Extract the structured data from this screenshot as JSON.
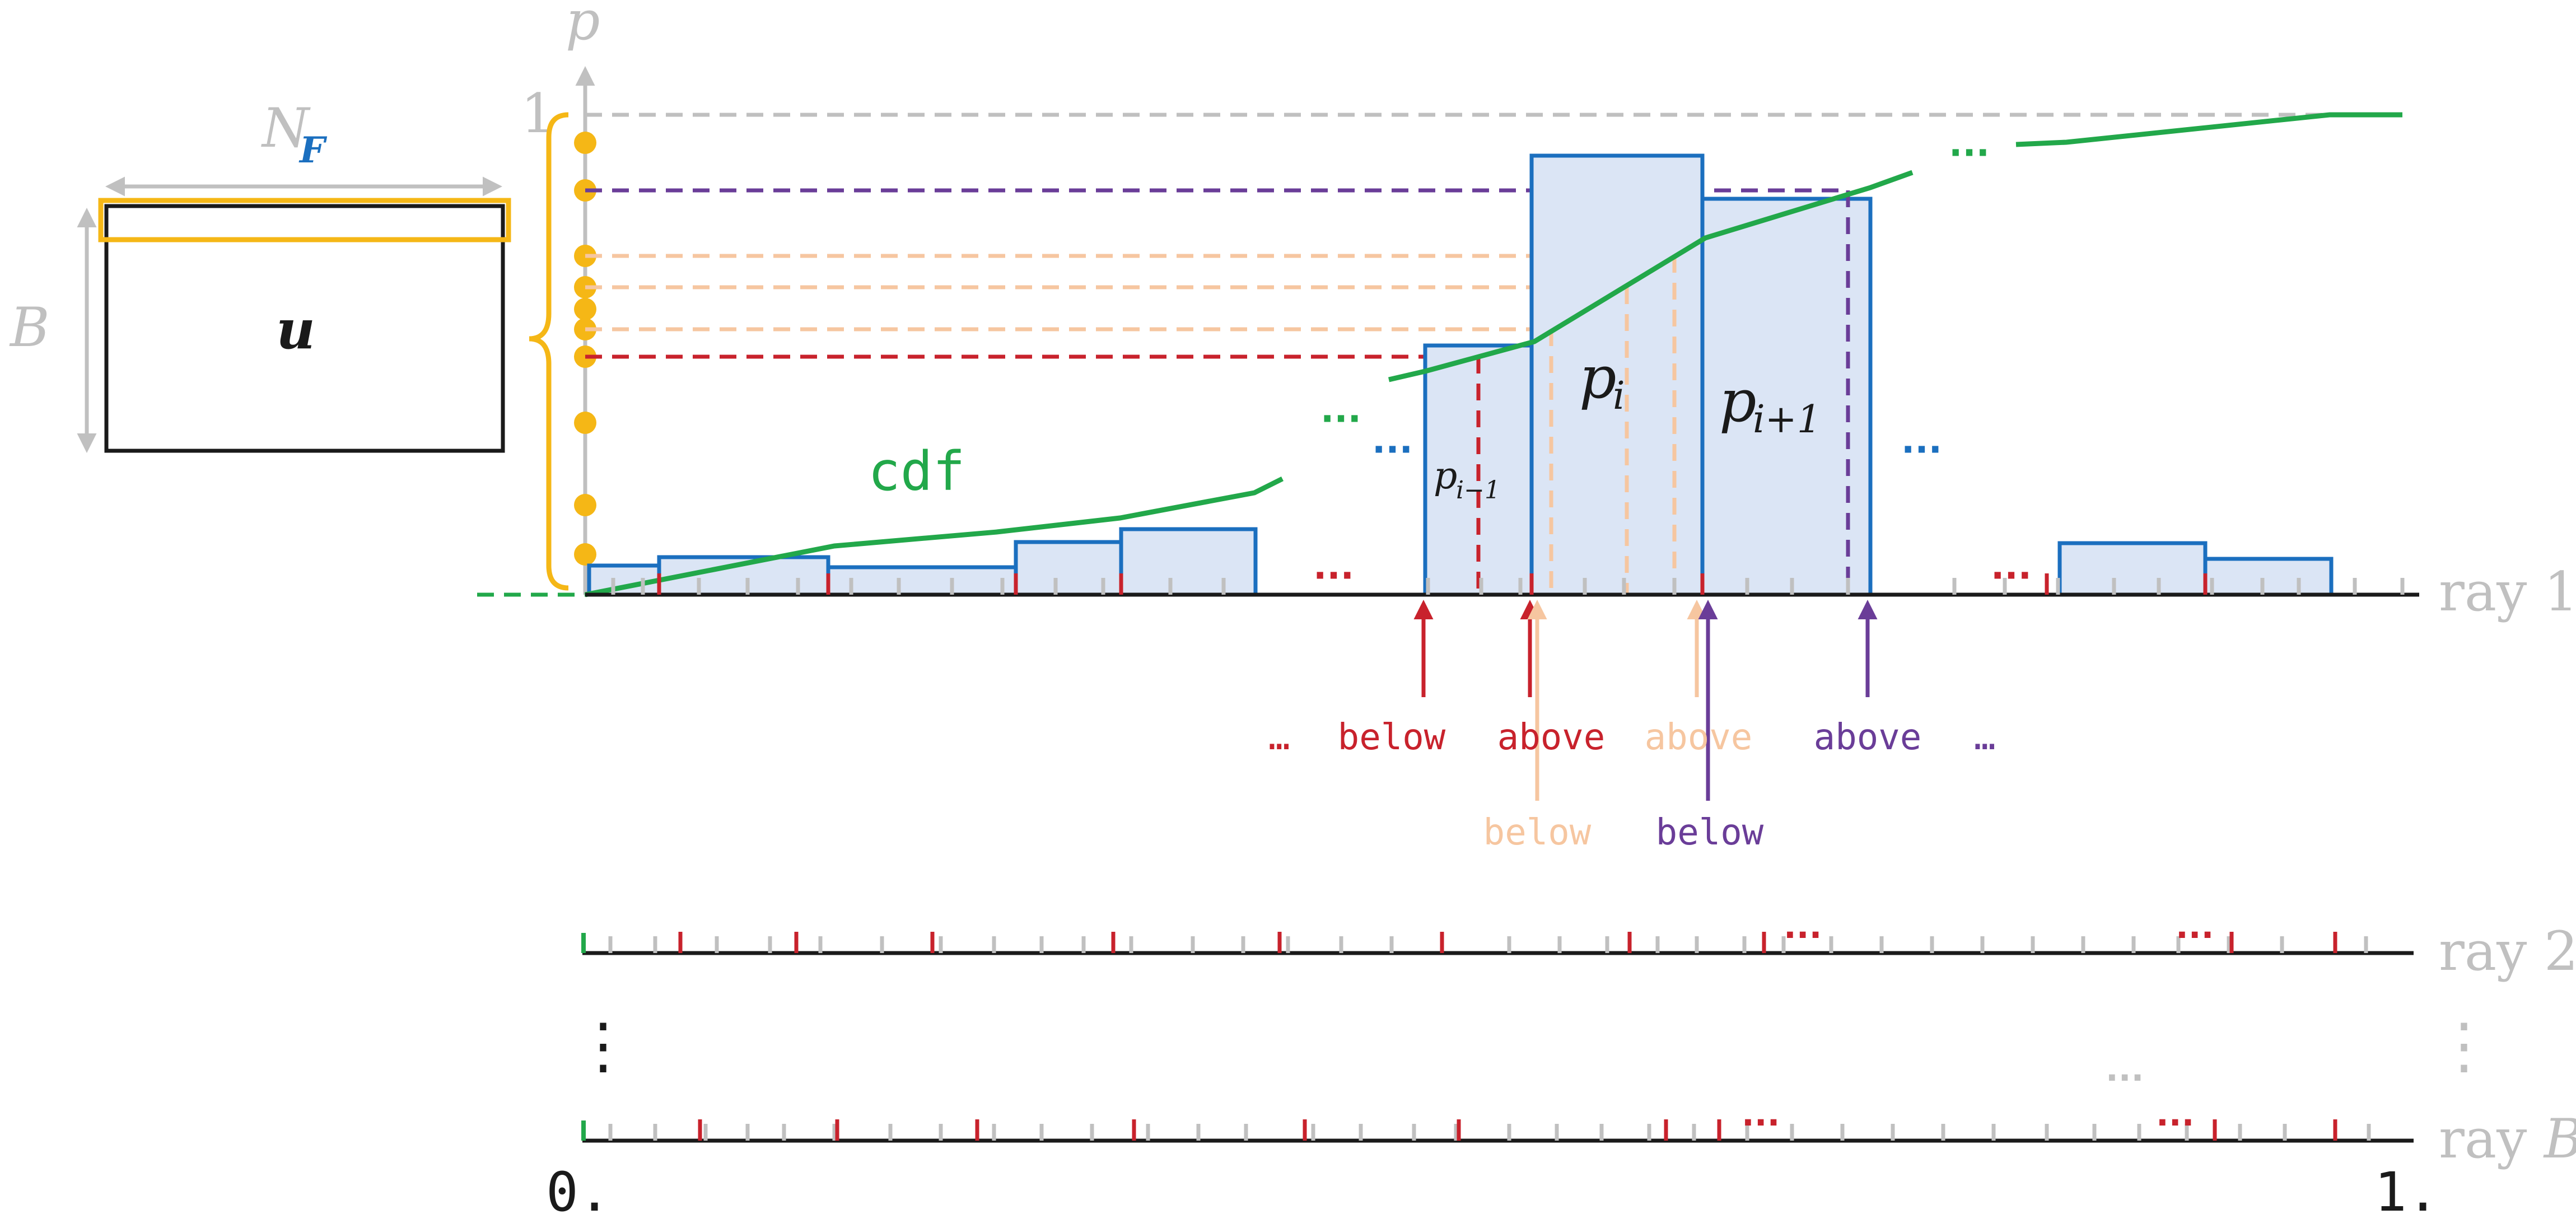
{
  "matrix": {
    "width_label": "N",
    "width_sub": "F",
    "height_label": "B",
    "name": "u"
  },
  "axis": {
    "y_label": "p",
    "one_label": "1"
  },
  "cdf_label": "cdf",
  "bins": {
    "prev": "p",
    "prev_sub": "i−1",
    "cur": "p",
    "cur_sub": "i",
    "next": "p",
    "next_sub": "i+1"
  },
  "ellipsis": "…",
  "ellipsis_dots": "···",
  "vdots": "⋮",
  "arrows": {
    "below_red": "below",
    "above_red": "above",
    "above_peach": "above",
    "below_peach": "below",
    "below_purple": "below",
    "above_purple": "above"
  },
  "rays": {
    "ray1": "ray 1",
    "ray2": "ray 2",
    "rayB_prefix": "ray ",
    "rayB_var": "B"
  },
  "xaxis": {
    "start": "0.",
    "end": "1."
  },
  "colors": {
    "blue": "#1b6fbf",
    "fill": "#dbe5f5",
    "green": "#22a84a",
    "gold": "#f5b716",
    "red": "#c8222c",
    "peach": "#f6c6a0",
    "purple": "#6a3d98",
    "gray": "#c0c0c0",
    "black": "#1a1a1a"
  }
}
